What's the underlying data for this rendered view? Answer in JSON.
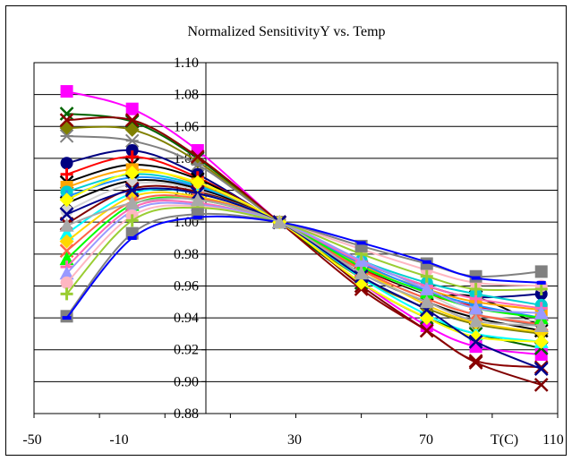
{
  "chart_data": {
    "type": "line",
    "title": "Normalized SensitivityY vs. Temp",
    "xlabel": "T(C)",
    "ylabel": "",
    "xlim": [
      -50,
      110
    ],
    "ylim": [
      0.88,
      1.1
    ],
    "x_ticks": [
      "-50",
      "-10",
      "30",
      "70",
      "110"
    ],
    "y_ticks": [
      "1.10",
      "1.08",
      "1.06",
      "1.04",
      "1.02",
      "1.00",
      "0.98",
      "0.96",
      "0.94",
      "0.92",
      "0.90",
      "0.88"
    ],
    "grid": "horizontal",
    "legend": "none",
    "x": [
      -40,
      -20,
      0,
      25,
      50,
      70,
      85,
      105
    ],
    "series": [
      {
        "color": "#ff00ff",
        "marker": "square",
        "values": [
          1.082,
          1.071,
          1.045,
          1.0,
          0.962,
          0.935,
          0.922,
          0.917
        ]
      },
      {
        "color": "#006400",
        "marker": "x",
        "values": [
          1.068,
          1.063,
          1.04,
          1.0,
          0.962,
          0.94,
          0.93,
          0.921
        ]
      },
      {
        "color": "#808000",
        "marker": "diamond",
        "values": [
          1.059,
          1.058,
          1.038,
          1.0,
          0.965,
          0.946,
          0.936,
          0.93
        ]
      },
      {
        "color": "#808080",
        "marker": "cross",
        "values": [
          1.054,
          1.051,
          1.036,
          1.0,
          0.97,
          0.952,
          0.942,
          0.935
        ]
      },
      {
        "color": "#000080",
        "marker": "circle",
        "values": [
          1.037,
          1.045,
          1.03,
          1.0,
          0.975,
          0.96,
          0.953,
          0.955
        ]
      },
      {
        "color": "#ff0000",
        "marker": "plus",
        "values": [
          1.03,
          1.041,
          1.028,
          1.0,
          0.971,
          0.955,
          0.947,
          0.94
        ]
      },
      {
        "color": "#000000",
        "marker": "x",
        "values": [
          1.025,
          1.036,
          1.027,
          1.0,
          0.972,
          0.955,
          0.953,
          0.935
        ]
      },
      {
        "color": "#ffa500",
        "marker": "square",
        "values": [
          1.022,
          1.033,
          1.024,
          1.0,
          0.973,
          0.958,
          0.95,
          0.945
        ]
      },
      {
        "color": "#00ced1",
        "marker": "circle",
        "values": [
          1.019,
          1.03,
          1.023,
          1.0,
          0.976,
          0.962,
          0.955,
          0.948
        ]
      },
      {
        "color": "#1e90ff",
        "marker": "plus",
        "values": [
          1.016,
          1.028,
          1.022,
          1.0,
          0.974,
          0.957,
          0.948,
          0.94
        ]
      },
      {
        "color": "#000000",
        "marker": "x",
        "values": [
          1.012,
          1.026,
          1.021,
          1.0,
          0.968,
          0.95,
          0.94,
          0.932
        ]
      },
      {
        "color": "#d3d3d3",
        "marker": "circle",
        "values": [
          1.007,
          1.024,
          1.02,
          1.0,
          0.972,
          0.955,
          0.942,
          0.938
        ]
      },
      {
        "color": "#800000",
        "marker": "x",
        "values": [
          0.999,
          1.021,
          1.019,
          1.0,
          0.96,
          0.932,
          0.912,
          0.898
        ]
      },
      {
        "color": "#00ffff",
        "marker": "triangle",
        "values": [
          0.993,
          1.018,
          1.018,
          1.0,
          0.965,
          0.942,
          0.93,
          0.925
        ]
      },
      {
        "color": "#ffd700",
        "marker": "diamond",
        "values": [
          0.988,
          1.016,
          1.016,
          1.0,
          0.97,
          0.948,
          0.937,
          0.931
        ]
      },
      {
        "color": "#ff6347",
        "marker": "x",
        "values": [
          0.982,
          1.013,
          1.015,
          1.0,
          0.97,
          0.952,
          0.942,
          0.936
        ]
      },
      {
        "color": "#00ff00",
        "marker": "triangle",
        "values": [
          0.977,
          1.011,
          1.014,
          1.0,
          0.972,
          0.956,
          0.946,
          0.94
        ]
      },
      {
        "color": "#ff69b4",
        "marker": "plus",
        "values": [
          0.972,
          1.009,
          1.012,
          1.0,
          0.975,
          0.96,
          0.952,
          0.946
        ]
      },
      {
        "color": "#9999ff",
        "marker": "triangle",
        "values": [
          0.968,
          1.007,
          1.011,
          1.0,
          0.976,
          0.958,
          0.946,
          0.943
        ]
      },
      {
        "color": "#ffb6c1",
        "marker": "circle",
        "values": [
          0.962,
          1.004,
          1.01,
          1.0,
          0.983,
          0.97,
          0.962,
          0.96
        ]
      },
      {
        "color": "#9acd32",
        "marker": "plus",
        "values": [
          0.955,
          1.001,
          1.009,
          1.0,
          0.98,
          0.966,
          0.958,
          0.958
        ]
      },
      {
        "color": "#808080",
        "marker": "square",
        "values": [
          0.941,
          0.993,
          1.005,
          1.0,
          0.985,
          0.974,
          0.966,
          0.969
        ]
      },
      {
        "color": "#0000ff",
        "marker": "none",
        "values": [
          0.94,
          0.99,
          1.003,
          1.0,
          0.987,
          0.975,
          0.965,
          0.962
        ]
      },
      {
        "color": "#8b0000",
        "marker": "x",
        "values": [
          1.064,
          1.064,
          1.041,
          1.0,
          0.958,
          0.932,
          0.913,
          0.909
        ]
      },
      {
        "color": "#ffff00",
        "marker": "diamond",
        "values": [
          1.014,
          1.031,
          1.025,
          1.0,
          0.962,
          0.94,
          0.928,
          0.925
        ]
      },
      {
        "color": "#00008b",
        "marker": "x",
        "values": [
          1.005,
          1.02,
          1.018,
          1.0,
          0.966,
          0.945,
          0.925,
          0.908
        ]
      },
      {
        "color": "#a9a9a9",
        "marker": "triangle",
        "values": [
          0.998,
          1.012,
          1.014,
          1.0,
          0.968,
          0.95,
          0.938,
          0.935
        ]
      }
    ]
  }
}
